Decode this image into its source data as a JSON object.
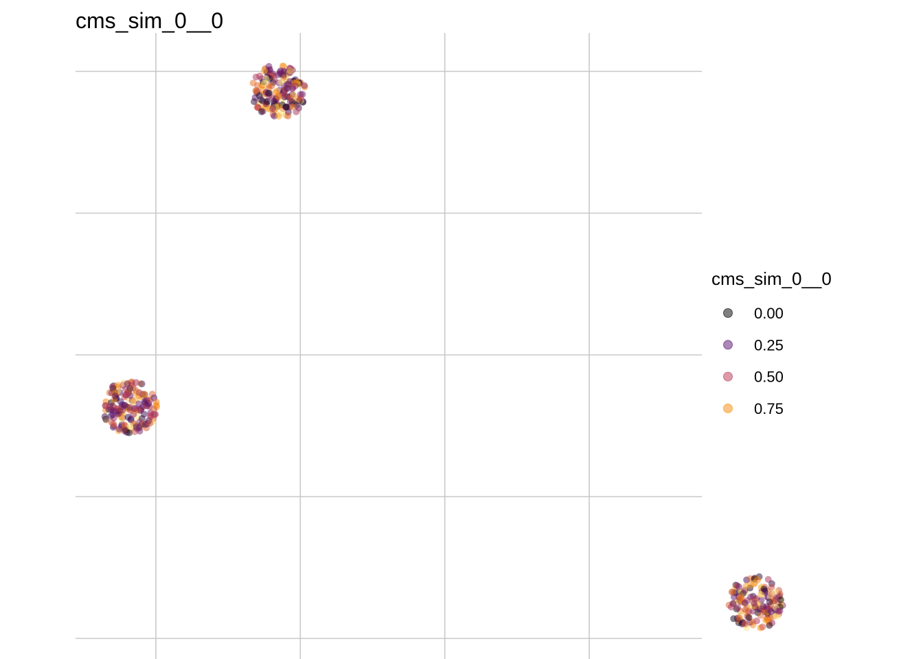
{
  "chart_data": {
    "type": "scatter",
    "title": "cms_sim_0__0",
    "xlabel": "",
    "ylabel": "",
    "grid": true,
    "legend_position": "right",
    "legend": {
      "title": "cms_sim_0__0",
      "entries": [
        {
          "label": "0.00",
          "value": 0.0,
          "color": "#000004"
        },
        {
          "label": "0.25",
          "value": 0.25,
          "color": "#56106E"
        },
        {
          "label": "0.50",
          "value": 0.5,
          "color": "#BB3754"
        },
        {
          "label": "0.75",
          "value": 0.75,
          "color": "#F98C0A"
        }
      ]
    },
    "color_scale": "inferno",
    "point_alpha": 0.5,
    "clusters": [
      {
        "cx": 0.85,
        "cy": 3.86,
        "n_points": 170
      },
      {
        "cx": -0.18,
        "cy": 1.63,
        "n_points": 170
      },
      {
        "cx": 4.15,
        "cy": 0.25,
        "n_points": 150
      }
    ]
  }
}
